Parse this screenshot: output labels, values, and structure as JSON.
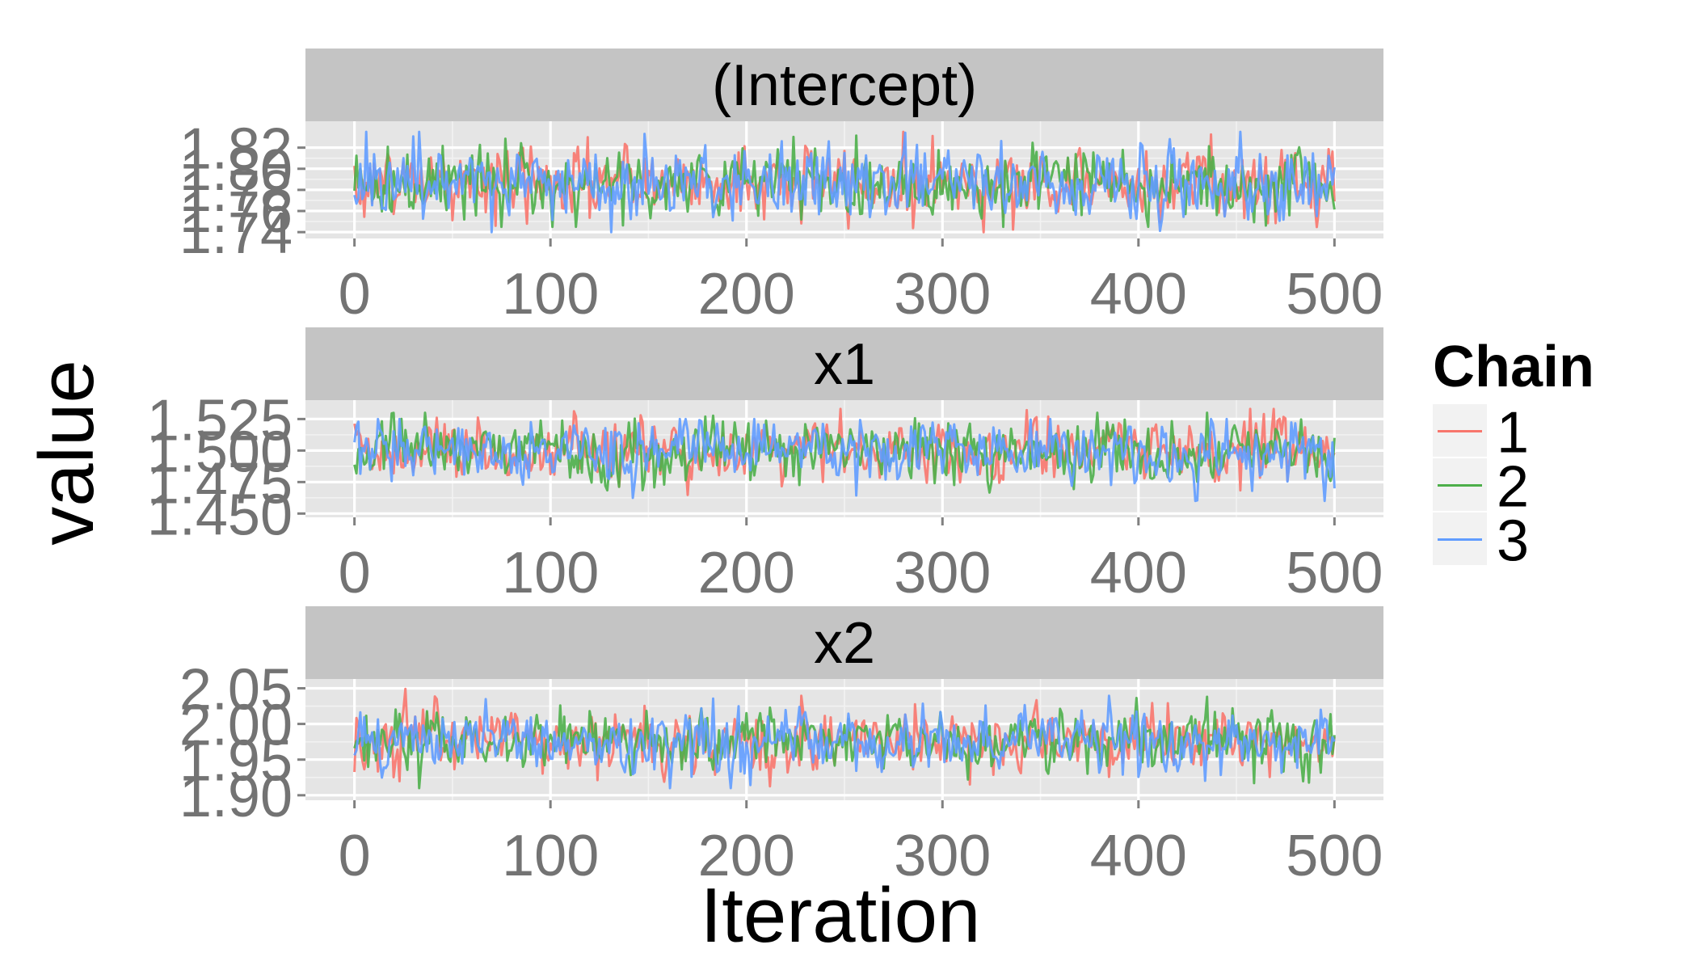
{
  "chart_data": {
    "type": "line",
    "xlabel": "Iteration",
    "ylabel": "value",
    "legend": {
      "title": "Chain",
      "position": "right",
      "entries": [
        {
          "name": "1",
          "color": "#F8766D"
        },
        {
          "name": "2",
          "color": "#4DAF4A"
        },
        {
          "name": "3",
          "color": "#619CFF"
        }
      ]
    },
    "grid": true,
    "iterations": 500,
    "panels": [
      {
        "title": "(Intercept)",
        "xlim": [
          -25,
          525
        ],
        "x_ticks": [
          "0",
          "100",
          "200",
          "300",
          "400",
          "500"
        ],
        "ylim": [
          1.734,
          1.845
        ],
        "y_ticks": [
          {
            "value": 1.74,
            "label": "1.74"
          },
          {
            "value": 1.76,
            "label": "1.76"
          },
          {
            "value": 1.78,
            "label": "1.78"
          },
          {
            "value": 1.8,
            "label": "1.80"
          },
          {
            "value": 1.82,
            "label": "1.82"
          }
        ],
        "center": 1.787,
        "spread": 0.017,
        "series": [
          {
            "name": "1",
            "range": [
              1.735,
              1.835
            ]
          },
          {
            "name": "2",
            "range": [
              1.745,
              1.843
            ]
          },
          {
            "name": "3",
            "range": [
              1.74,
              1.835
            ]
          }
        ]
      },
      {
        "title": "x1",
        "xlim": [
          -25,
          525
        ],
        "x_ticks": [
          "0",
          "100",
          "200",
          "300",
          "400",
          "500"
        ],
        "ylim": [
          1.447,
          1.54
        ],
        "y_ticks": [
          {
            "value": 1.45,
            "label": "1.450"
          },
          {
            "value": 1.475,
            "label": "1.475"
          },
          {
            "value": 1.5,
            "label": "1.500"
          },
          {
            "value": 1.525,
            "label": "1.525"
          }
        ],
        "center": 1.5,
        "spread": 0.012,
        "series": [
          {
            "name": "1",
            "range": [
              1.449,
              1.533
            ]
          },
          {
            "name": "2",
            "range": [
              1.458,
              1.53
            ]
          },
          {
            "name": "3",
            "range": [
              1.46,
              1.525
            ]
          }
        ]
      },
      {
        "title": "x2",
        "xlim": [
          -25,
          525
        ],
        "x_ticks": [
          "0",
          "100",
          "200",
          "300",
          "400",
          "500"
        ],
        "ylim": [
          1.893,
          2.063
        ],
        "y_ticks": [
          {
            "value": 1.9,
            "label": "1.90"
          },
          {
            "value": 1.95,
            "label": "1.95"
          },
          {
            "value": 2.0,
            "label": "2.00"
          },
          {
            "value": 2.05,
            "label": "2.05"
          }
        ],
        "center": 1.975,
        "spread": 0.022,
        "series": [
          {
            "name": "1",
            "range": [
              1.905,
              2.055
            ]
          },
          {
            "name": "2",
            "range": [
              1.91,
              2.055
            ]
          },
          {
            "name": "3",
            "range": [
              1.91,
              2.05
            ]
          }
        ]
      }
    ]
  }
}
